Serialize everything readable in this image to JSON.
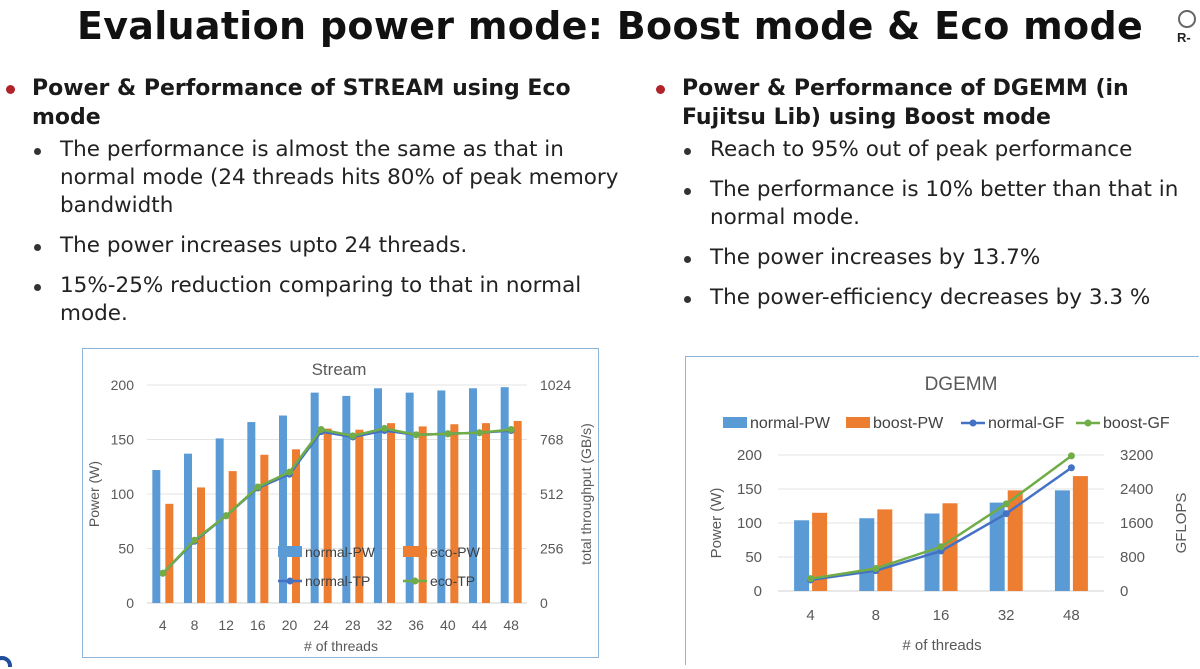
{
  "slide": {
    "title": "Evaluation power mode: Boost mode & Eco mode",
    "logo_text": "R-"
  },
  "left": {
    "heading": "Power & Performance of STREAM using Eco mode",
    "bullets": [
      "The performance is almost the same as that in normal mode (24 threads hits 80% of peak memory bandwidth",
      "The power increases upto 24 threads.",
      "15%-25% reduction comparing to that in normal mode."
    ]
  },
  "right": {
    "heading": "Power & Performance of DGEMM (in Fujitsu Lib) using Boost mode",
    "bullets": [
      "Reach to 95% out of peak performance",
      "The performance is 10% better than that in normal mode.",
      "The power increases by 13.7%",
      "The power-efficiency decreases by 3.3 %"
    ]
  },
  "colors": {
    "accent_dot": "#b0232a",
    "blue_bar": "#5b9bd5",
    "orange_bar": "#ed7d31",
    "blue_line": "#4472c4",
    "green_line": "#70ad47",
    "chart_border": "#8eb4dc"
  },
  "chart_data": [
    {
      "type": "bar",
      "title": "Stream",
      "categories": [
        "4",
        "8",
        "12",
        "16",
        "20",
        "24",
        "28",
        "32",
        "36",
        "40",
        "44",
        "48"
      ],
      "xlabel": "# of threads",
      "ylabel": "Power (W)",
      "y2label": "total throughput (GB/s)",
      "ylim": [
        0,
        200
      ],
      "y2lim": [
        0,
        1024
      ],
      "yticks": [
        "0",
        "50",
        "100",
        "150",
        "200"
      ],
      "y2ticks": [
        "0",
        "256",
        "512",
        "768",
        "1024"
      ],
      "legend_position": "bottom-right inside plot",
      "grid": true,
      "series": [
        {
          "name": "normal-PW",
          "kind": "bar",
          "axis": "left",
          "values": [
            122,
            137,
            151,
            166,
            172,
            193,
            190,
            197,
            193,
            195,
            197,
            198
          ]
        },
        {
          "name": "eco-PW",
          "kind": "bar",
          "axis": "left",
          "values": [
            91,
            106,
            121,
            136,
            141,
            160,
            159,
            165,
            162,
            164,
            165,
            167
          ]
        },
        {
          "name": "normal-TP",
          "kind": "line",
          "axis": "right",
          "values": [
            140,
            290,
            410,
            540,
            605,
            805,
            780,
            810,
            790,
            795,
            800,
            810
          ]
        },
        {
          "name": "eco-TP",
          "kind": "line",
          "axis": "right",
          "values": [
            140,
            295,
            410,
            545,
            615,
            815,
            785,
            820,
            790,
            795,
            800,
            815
          ]
        }
      ]
    },
    {
      "type": "bar",
      "title": "DGEMM",
      "categories": [
        "4",
        "8",
        "16",
        "32",
        "48"
      ],
      "xlabel": "# of threads",
      "ylabel": "Power (W)",
      "y2label": "GFLOPS",
      "ylim": [
        0,
        200
      ],
      "y2lim": [
        0,
        3200
      ],
      "yticks": [
        "0",
        "50",
        "100",
        "150",
        "200"
      ],
      "y2ticks": [
        "0",
        "800",
        "1600",
        "2400",
        "3200"
      ],
      "legend_position": "top",
      "grid": true,
      "series": [
        {
          "name": "normal-PW",
          "kind": "bar",
          "axis": "left",
          "values": [
            104,
            107,
            114,
            130,
            148
          ]
        },
        {
          "name": "boost-PW",
          "kind": "bar",
          "axis": "left",
          "values": [
            115,
            120,
            129,
            148,
            169
          ]
        },
        {
          "name": "normal-GF",
          "kind": "line",
          "axis": "right",
          "values": [
            260,
            480,
            940,
            1820,
            2900
          ]
        },
        {
          "name": "boost-GF",
          "kind": "line",
          "axis": "right",
          "values": [
            290,
            530,
            1040,
            2050,
            3180
          ]
        }
      ]
    }
  ]
}
